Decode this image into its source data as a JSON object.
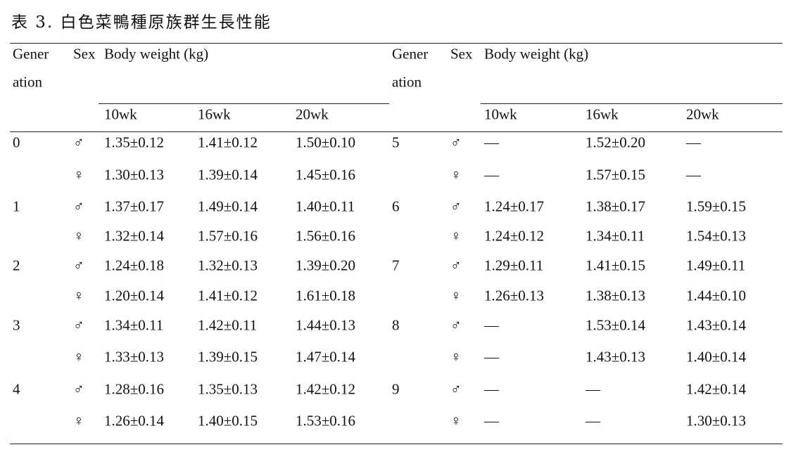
{
  "title": "表 3. 白色菜鴨種原族群生長性能",
  "header": {
    "generation": [
      "Gener",
      "ation"
    ],
    "sex": "Sex",
    "body_weight": "Body weight (kg)",
    "weeks": [
      "10wk",
      "16wk",
      "20wk"
    ]
  },
  "left": [
    {
      "generation": "0",
      "rows": [
        [
          "♂",
          "1.35±0.12",
          "1.41±0.12",
          "1.50±0.10"
        ],
        [
          "♀",
          "1.30±0.13",
          "1.39±0.14",
          "1.45±0.16"
        ]
      ]
    },
    {
      "generation": "1",
      "rows": [
        [
          "♂",
          "1.37±0.17",
          "1.49±0.14",
          "1.40±0.11"
        ],
        [
          "♀",
          "1.32±0.14",
          "1.57±0.16",
          "1.56±0.16"
        ]
      ]
    },
    {
      "generation": "2",
      "rows": [
        [
          "♂",
          "1.24±0.18",
          "1.32±0.13",
          "1.39±0.20"
        ],
        [
          "♀",
          "1.20±0.14",
          "1.41±0.12",
          "1.61±0.18"
        ]
      ]
    },
    {
      "generation": "3",
      "rows": [
        [
          "♂",
          "1.34±0.11",
          "1.42±0.11",
          "1.44±0.13"
        ],
        [
          "♀",
          "1.33±0.13",
          "1.39±0.15",
          "1.47±0.14"
        ]
      ]
    },
    {
      "generation": "4",
      "rows": [
        [
          "♂",
          "1.28±0.16",
          "1.35±0.13",
          "1.42±0.12"
        ],
        [
          "♀",
          "1.26±0.14",
          "1.40±0.15",
          "1.53±0.16"
        ]
      ]
    }
  ],
  "right": [
    {
      "generation": "5",
      "rows": [
        [
          "♂",
          "—",
          "1.52±0.20",
          "—"
        ],
        [
          "♀",
          "—",
          "1.57±0.15",
          "—"
        ]
      ]
    },
    {
      "generation": "6",
      "rows": [
        [
          "♂",
          "1.24±0.17",
          "1.38±0.17",
          "1.59±0.15"
        ],
        [
          "♀",
          "1.24±0.12",
          "1.34±0.11",
          "1.54±0.13"
        ]
      ]
    },
    {
      "generation": "7",
      "rows": [
        [
          "♂",
          "1.29±0.11",
          "1.41±0.15",
          "1.49±0.11"
        ],
        [
          "♀",
          "1.26±0.13",
          "1.38±0.13",
          "1.44±0.10"
        ]
      ]
    },
    {
      "generation": "8",
      "rows": [
        [
          "♂",
          "—",
          "1.53±0.14",
          "1.43±0.14"
        ],
        [
          "♀",
          "—",
          "1.43±0.13",
          "1.40±0.14"
        ]
      ]
    },
    {
      "generation": "9",
      "rows": [
        [
          "♂",
          "—",
          "—",
          "1.42±0.14"
        ],
        [
          "♀",
          "—",
          "—",
          "1.30±0.13"
        ]
      ]
    }
  ]
}
